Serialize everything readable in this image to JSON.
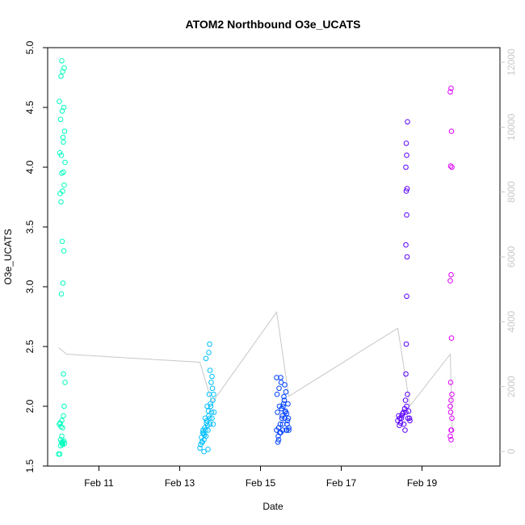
{
  "chart_data": {
    "type": "scatter",
    "title": "ATOM2 Northbound O3e_UCATS",
    "xlabel": "Date",
    "ylabel": "O3e_UCATS",
    "x_ticks": [
      "Feb 11",
      "Feb 13",
      "Feb 15",
      "Feb 17",
      "Feb 19"
    ],
    "x_tick_days": [
      11,
      13,
      15,
      17,
      19
    ],
    "xlim": [
      9.73,
      20.93
    ],
    "ylim": [
      1.5,
      5.0
    ],
    "y_ticks": [
      "1.5",
      "2.0",
      "2.5",
      "3.0",
      "3.5",
      "4.0",
      "4.5",
      "5.0"
    ],
    "y_tick_values": [
      1.5,
      2.0,
      2.5,
      3.0,
      3.5,
      4.0,
      4.5,
      5.0
    ],
    "y2_ticks": [
      "0",
      "2000",
      "4000",
      "6000",
      "8000",
      "10000",
      "12000"
    ],
    "y2_tick_values": [
      0,
      2000,
      4000,
      6000,
      8000,
      10000,
      12000
    ],
    "y2lim": [
      -450,
      12450
    ],
    "grid": false,
    "colors": {
      "flight1": "#00ffbf",
      "flight2": "#00bfff",
      "flight3": "#0040ff",
      "flight4": "#5b00ff",
      "flight5": "#e000ff",
      "altitude": "#c8c8c8",
      "right_axis": "#c8c8c8"
    },
    "series": [
      {
        "color_key": "flight1",
        "x": [
          10.0,
          10.03,
          10.05,
          10.07,
          10.09,
          10.11,
          10.13,
          10.15,
          10.02,
          10.04,
          10.06,
          10.08,
          10.1,
          10.12,
          10.14,
          10.16,
          10.05,
          10.08,
          10.1,
          10.12,
          10.07,
          10.11,
          10.09,
          10.13,
          10.06,
          10.1,
          10.14,
          10.04,
          10.08,
          10.12,
          10.16,
          10.03,
          10.07,
          10.11,
          10.15,
          10.05,
          10.09,
          10.13,
          10.02,
          10.06,
          10.1,
          10.14,
          10.08,
          10.12
        ],
        "y": [
          1.6,
          1.6,
          1.67,
          1.7,
          1.69,
          1.7,
          1.71,
          1.69,
          1.85,
          1.86,
          1.83,
          1.88,
          1.82,
          1.92,
          2.0,
          2.2,
          1.72,
          1.75,
          1.68,
          2.27,
          2.94,
          3.03,
          3.38,
          3.3,
          3.71,
          3.8,
          3.85,
          3.78,
          3.95,
          3.96,
          4.04,
          4.12,
          4.1,
          4.25,
          4.3,
          4.4,
          4.47,
          4.5,
          4.55,
          4.76,
          4.8,
          4.83,
          4.89,
          4.21
        ]
      },
      {
        "color_key": "flight2",
        "x": [
          13.5,
          13.55,
          13.6,
          13.65,
          13.7,
          13.75,
          13.8,
          13.85,
          13.52,
          13.57,
          13.62,
          13.67,
          13.72,
          13.77,
          13.82,
          13.54,
          13.59,
          13.64,
          13.69,
          13.74,
          13.79,
          13.84,
          13.56,
          13.61,
          13.66,
          13.71,
          13.76,
          13.81,
          13.58,
          13.63,
          13.68,
          13.73,
          13.78,
          13.83,
          13.6,
          13.7,
          13.75,
          13.65,
          13.8,
          13.72,
          13.74
        ],
        "y": [
          1.65,
          1.7,
          1.72,
          1.75,
          1.8,
          1.85,
          1.9,
          1.95,
          1.68,
          1.78,
          1.82,
          1.88,
          1.92,
          2.0,
          2.05,
          1.74,
          1.77,
          1.8,
          1.84,
          1.9,
          1.95,
          2.1,
          1.7,
          1.76,
          1.86,
          1.96,
          2.02,
          2.15,
          1.8,
          1.9,
          2.0,
          2.1,
          2.2,
          1.85,
          1.62,
          1.64,
          2.3,
          2.4,
          2.25,
          2.45,
          2.52
        ]
      },
      {
        "color_key": "flight3",
        "x": [
          15.4,
          15.45,
          15.5,
          15.55,
          15.6,
          15.65,
          15.7,
          15.42,
          15.47,
          15.52,
          15.57,
          15.62,
          15.67,
          15.44,
          15.49,
          15.54,
          15.59,
          15.64,
          15.69,
          15.41,
          15.46,
          15.51,
          15.56,
          15.61,
          15.66,
          15.43,
          15.48,
          15.53,
          15.58,
          15.63,
          15.68,
          15.5,
          15.6,
          15.45,
          15.55,
          15.65,
          15.4,
          15.7
        ],
        "y": [
          1.8,
          1.82,
          1.78,
          1.85,
          1.9,
          1.8,
          1.82,
          1.95,
          2.0,
          1.98,
          2.02,
          1.96,
          1.88,
          1.75,
          1.85,
          1.92,
          2.05,
          1.8,
          1.9,
          2.1,
          2.15,
          2.2,
          2.0,
          1.95,
          1.85,
          1.7,
          1.78,
          1.9,
          2.08,
          2.12,
          2.02,
          2.24,
          2.18,
          1.72,
          1.8,
          1.94,
          2.24,
          1.8
        ]
      },
      {
        "color_key": "flight4",
        "x": [
          18.4,
          18.45,
          18.5,
          18.55,
          18.6,
          18.65,
          18.7,
          18.42,
          18.47,
          18.52,
          18.57,
          18.62,
          18.67,
          18.44,
          18.49,
          18.54,
          18.59,
          18.64,
          18.69,
          18.6,
          18.61,
          18.62,
          18.63,
          18.6,
          18.62,
          18.61,
          18.63,
          18.6,
          18.62,
          18.61,
          18.64,
          18.58
        ],
        "y": [
          1.88,
          1.9,
          1.92,
          1.85,
          1.95,
          1.9,
          1.88,
          1.92,
          1.86,
          1.94,
          1.98,
          2.0,
          1.96,
          1.84,
          1.9,
          1.95,
          2.05,
          2.1,
          1.9,
          2.27,
          2.52,
          2.92,
          3.25,
          3.35,
          3.6,
          3.8,
          3.82,
          4.0,
          4.1,
          4.2,
          4.38,
          1.8
        ]
      },
      {
        "color_key": "flight5",
        "x": [
          19.7,
          19.72,
          19.74,
          19.7,
          19.72,
          19.74,
          19.71,
          19.73,
          19.7,
          19.72,
          19.74,
          19.71,
          19.73,
          19.7,
          19.72,
          19.71,
          19.73,
          19.72
        ],
        "y": [
          1.75,
          1.8,
          1.9,
          2.0,
          2.05,
          2.1,
          2.2,
          2.57,
          3.05,
          3.1,
          4.0,
          4.01,
          4.3,
          4.63,
          4.66,
          1.95,
          1.8,
          1.72
        ]
      }
    ],
    "altitude": {
      "x": [
        10.0,
        10.2,
        13.5,
        13.8,
        15.4,
        15.7,
        18.4,
        18.7,
        19.7,
        19.75
      ],
      "y": [
        3200,
        3000,
        2750,
        1500,
        4300,
        1700,
        3800,
        1400,
        3000,
        600
      ]
    }
  }
}
